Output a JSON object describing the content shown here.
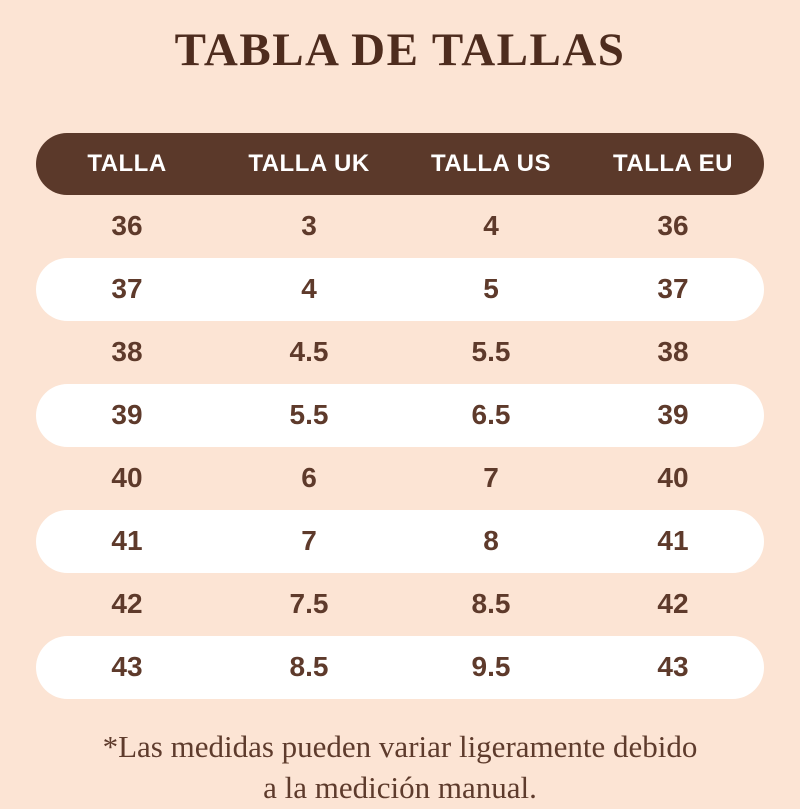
{
  "title": "TABLA DE TALLAS",
  "colors": {
    "page_background": "#fce4d4",
    "header_background": "#5b392a",
    "header_text": "#ffffff",
    "row_pill_background": "#ffffff",
    "body_text": "#5e3a2b",
    "title_text": "#4e2c1e",
    "footnote_text": "#5e3b2c"
  },
  "chart_data": {
    "type": "table",
    "title": "TABLA DE TALLAS",
    "columns": [
      "TALLA",
      "TALLA UK",
      "TALLA US",
      "TALLA EU"
    ],
    "rows": [
      [
        "36",
        "3",
        "4",
        "36"
      ],
      [
        "37",
        "4",
        "5",
        "37"
      ],
      [
        "38",
        "4.5",
        "5.5",
        "38"
      ],
      [
        "39",
        "5.5",
        "6.5",
        "39"
      ],
      [
        "40",
        "6",
        "7",
        "40"
      ],
      [
        "41",
        "7",
        "8",
        "41"
      ],
      [
        "42",
        "7.5",
        "8.5",
        "42"
      ],
      [
        "43",
        "8.5",
        "9.5",
        "43"
      ]
    ],
    "layout_hints": {
      "alternating_rows": "even rows plain peach background, odd rows white rounded pill",
      "header_style": "dark brown rounded pill, white uppercase labels"
    }
  },
  "footnote": {
    "line1": "*Las medidas pueden variar ligeramente debido",
    "line2": "a la medición manual."
  }
}
